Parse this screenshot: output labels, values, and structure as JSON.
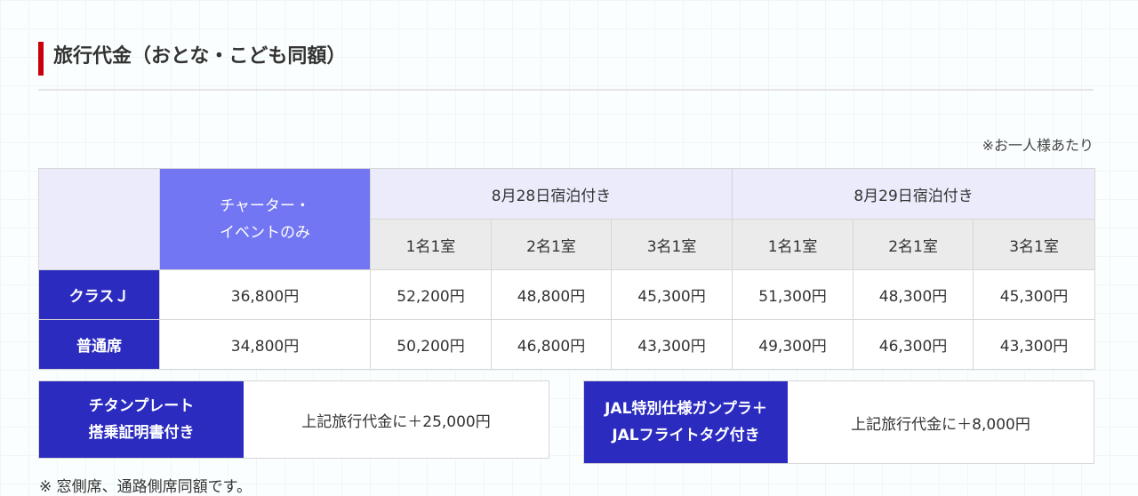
{
  "heading": {
    "title": "旅行代金（おとな・こども同額）"
  },
  "note_top": "※お一人様あたり",
  "table": {
    "charter_line1": "チャーター・",
    "charter_line2": "イベントのみ",
    "dates": [
      "8月28日宿泊付き",
      "8月29日宿泊付き"
    ],
    "rooms": [
      "1名1室",
      "2名1室",
      "3名1室",
      "1名1室",
      "2名1室",
      "3名1室"
    ],
    "rows": [
      {
        "label": "クラスＪ",
        "charter": "36,800円",
        "prices": [
          "52,200円",
          "48,800円",
          "45,300円",
          "51,300円",
          "48,300円",
          "45,300円"
        ]
      },
      {
        "label": "普通席",
        "charter": "34,800円",
        "prices": [
          "50,200円",
          "46,800円",
          "43,300円",
          "49,300円",
          "46,300円",
          "43,300円"
        ]
      }
    ]
  },
  "options": [
    {
      "line1": "チタンプレート",
      "line2": "搭乗証明書付き",
      "value": "上記旅行代金に＋25,000円"
    },
    {
      "line1": "JAL特別仕様ガンプラ＋",
      "line2": "JALフライトタグ付き",
      "value": "上記旅行代金に＋8,000円"
    }
  ],
  "note_bottom": "※ 窓側席、通路側席同額です。",
  "colors": {
    "accent_red": "#c8000a",
    "label_blue": "#2b2bc0",
    "charter_purple": "#7276f2",
    "header_lavender": "#ebebfb",
    "header_gray": "#ebebeb"
  }
}
